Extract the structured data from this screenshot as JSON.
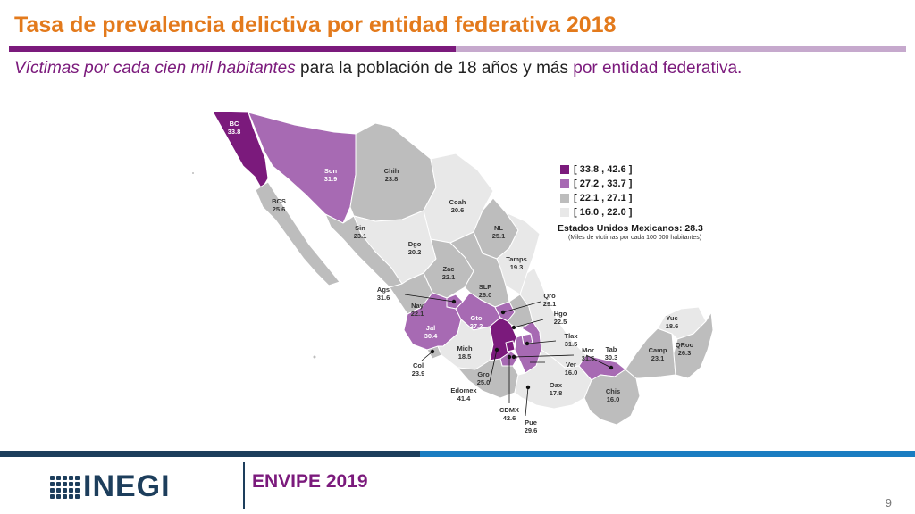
{
  "header": {
    "title": "Tasa de prevalencia delictiva por entidad federativa 2018",
    "subtitle_italic": "Víctimas por cada cien mil habitantes",
    "subtitle_mid": " para la población de 18 años y más ",
    "subtitle_end": "por entidad federativa."
  },
  "colors": {
    "range1": "#7b1a7c",
    "range2": "#a76ab3",
    "range3": "#bdbdbd",
    "range4": "#e8e8e8",
    "title": "#e37a1c",
    "brand": "#1d3e5c"
  },
  "legend": {
    "items": [
      {
        "label": "[ 33.8 , 42.6 ]",
        "color": "#7b1a7c"
      },
      {
        "label": "[ 27.2 , 33.7 ]",
        "color": "#a76ab3"
      },
      {
        "label": "[ 22.1 , 27.1 ]",
        "color": "#bdbdbd"
      },
      {
        "label": "[ 16.0 , 22.0 ]",
        "color": "#e8e8e8"
      }
    ],
    "national": "Estados Unidos Mexicanos:  28.3",
    "note": "(Miles de víctimas por cada 100 000 habitantes)"
  },
  "states": [
    {
      "abbr": "BC",
      "value": "33.8"
    },
    {
      "abbr": "Son",
      "value": "31.9"
    },
    {
      "abbr": "Chih",
      "value": "23.8"
    },
    {
      "abbr": "Coah",
      "value": "20.6"
    },
    {
      "abbr": "BCS",
      "value": "25.6"
    },
    {
      "abbr": "Sin",
      "value": "23.1"
    },
    {
      "abbr": "Dgo",
      "value": "20.2"
    },
    {
      "abbr": "NL",
      "value": "25.1"
    },
    {
      "abbr": "Tamps",
      "value": "19.3"
    },
    {
      "abbr": "Zac",
      "value": "22.1"
    },
    {
      "abbr": "SLP",
      "value": "26.0"
    },
    {
      "abbr": "Ags",
      "value": "31.6"
    },
    {
      "abbr": "Nay",
      "value": "22.1"
    },
    {
      "abbr": "Qro",
      "value": "29.1"
    },
    {
      "abbr": "Gto",
      "value": "27.2"
    },
    {
      "abbr": "Hgo",
      "value": "22.5"
    },
    {
      "abbr": "Jal",
      "value": "30.4"
    },
    {
      "abbr": "Tlax",
      "value": "31.5"
    },
    {
      "abbr": "Yuc",
      "value": "18.6"
    },
    {
      "abbr": "Mich",
      "value": "18.5"
    },
    {
      "abbr": "Mor",
      "value": "31.5"
    },
    {
      "abbr": "Tab",
      "value": "30.3"
    },
    {
      "abbr": "Camp",
      "value": "23.1"
    },
    {
      "abbr": "QRoo",
      "value": "26.3"
    },
    {
      "abbr": "Col",
      "value": "23.9"
    },
    {
      "abbr": "Gro",
      "value": "25.0"
    },
    {
      "abbr": "Ver",
      "value": "16.0"
    },
    {
      "abbr": "Oax",
      "value": "17.8"
    },
    {
      "abbr": "Chis",
      "value": "16.0"
    },
    {
      "abbr": "Edomex",
      "value": "41.4"
    },
    {
      "abbr": "CDMX",
      "value": "42.6"
    },
    {
      "abbr": "Pue",
      "value": "29.6"
    }
  ],
  "footer": {
    "logo": "INEGI",
    "survey": "ENVIPE 2019",
    "page": "9"
  }
}
